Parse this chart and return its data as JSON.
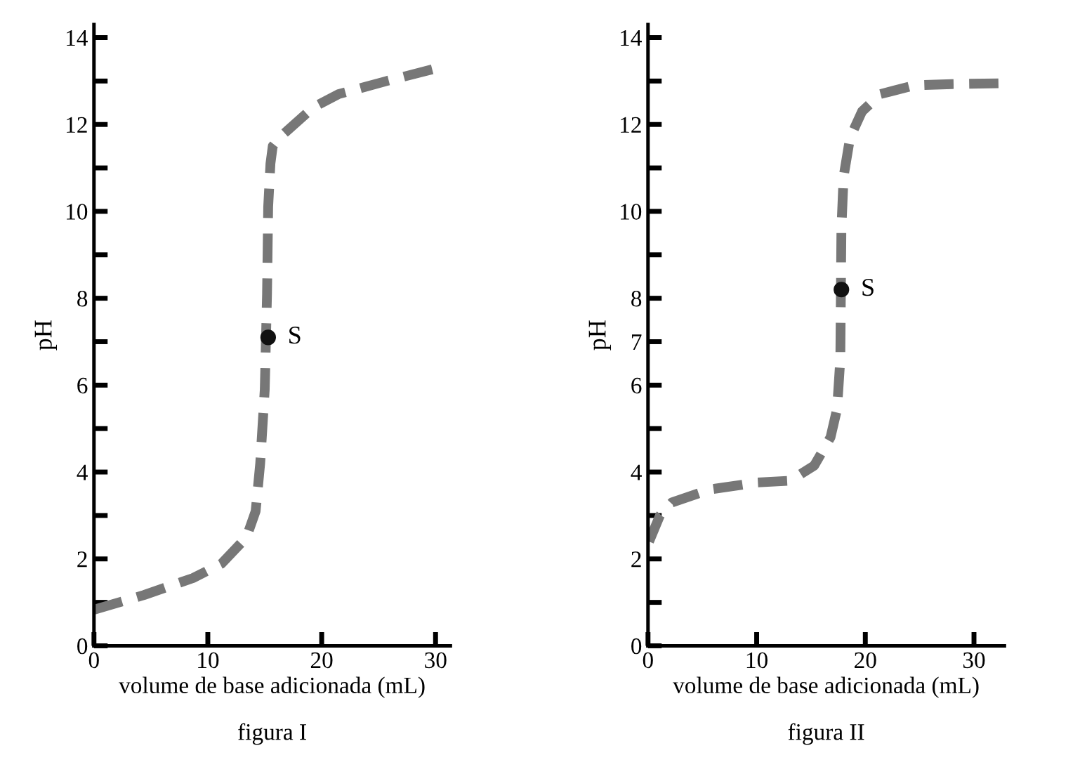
{
  "chart_data": [
    {
      "type": "line",
      "title": "figura I",
      "xlabel": "volume de base adicionada (mL)",
      "ylabel": "pH",
      "xlim": [
        0,
        31.3
      ],
      "ylim": [
        0,
        14.3
      ],
      "xticks": [
        0,
        10,
        20,
        30
      ],
      "yticks": [
        0,
        {
          "value": 1,
          "label": null
        },
        2,
        {
          "value": 3,
          "label": null
        },
        4,
        {
          "value": 5,
          "label": null
        },
        6,
        {
          "value": 7,
          "label": null
        },
        8,
        {
          "value": 9,
          "label": null
        },
        10,
        {
          "value": 11,
          "label": null
        },
        12,
        {
          "value": 13,
          "label": null
        },
        14
      ],
      "grid": false,
      "legend": false,
      "line_style": "dashed",
      "marker": "none",
      "series": [
        {
          "color": "#777777",
          "x": [
            0,
            4.4,
            8.7,
            11.2,
            13.4,
            14.2,
            14.6,
            15.0,
            15.2,
            15.3,
            15.5,
            15.7,
            16.3,
            19.3,
            21.5,
            25.7,
            30.2
          ],
          "values": [
            0.83,
            1.17,
            1.56,
            1.89,
            2.5,
            3.1,
            4.2,
            5.9,
            8.1,
            10.1,
            11.1,
            11.5,
            11.7,
            12.4,
            12.7,
            13.0,
            13.3
          ]
        },
        {
          "type": "scatter",
          "marker": "circle",
          "color": "#111111",
          "x": [
            15.3
          ],
          "values": [
            7.1
          ]
        }
      ],
      "annotations": [
        {
          "text": "S",
          "x": 15.3,
          "y": 7.1
        }
      ]
    },
    {
      "type": "line",
      "title": "figura II",
      "xlabel": "volume de base adicionada (mL)",
      "ylabel": "pH",
      "xlim": [
        0,
        32.8
      ],
      "ylim": [
        0,
        14.3
      ],
      "xticks": [
        0,
        10,
        20,
        30
      ],
      "yticks": [
        0,
        {
          "value": 1,
          "label": null
        },
        2,
        {
          "value": 3,
          "label": null
        },
        4,
        {
          "value": 5,
          "label": null
        },
        6,
        7,
        8,
        {
          "value": 9,
          "label": null
        },
        10,
        {
          "value": 11,
          "label": null
        },
        12,
        {
          "value": 13,
          "label": null
        },
        14
      ],
      "grid": false,
      "legend": false,
      "line_style": "dashed",
      "marker": "none",
      "series": [
        {
          "color": "#777777",
          "x": [
            0.1,
            1.1,
            2.2,
            5.7,
            10.1,
            13.1,
            15.3,
            16.8,
            17.4,
            17.7,
            17.8,
            18.0,
            18.6,
            19.7,
            21.4,
            24.5,
            28.0,
            32.8
          ],
          "values": [
            2.4,
            3.0,
            3.3,
            3.6,
            3.76,
            3.8,
            4.15,
            4.8,
            5.45,
            6.6,
            9.6,
            10.8,
            11.7,
            12.3,
            12.7,
            12.9,
            12.93,
            12.95
          ]
        },
        {
          "type": "scatter",
          "marker": "circle",
          "color": "#111111",
          "x": [
            17.8
          ],
          "values": [
            8.2
          ]
        }
      ],
      "annotations": [
        {
          "text": "S",
          "x": 17.8,
          "y": 8.2
        }
      ]
    }
  ]
}
